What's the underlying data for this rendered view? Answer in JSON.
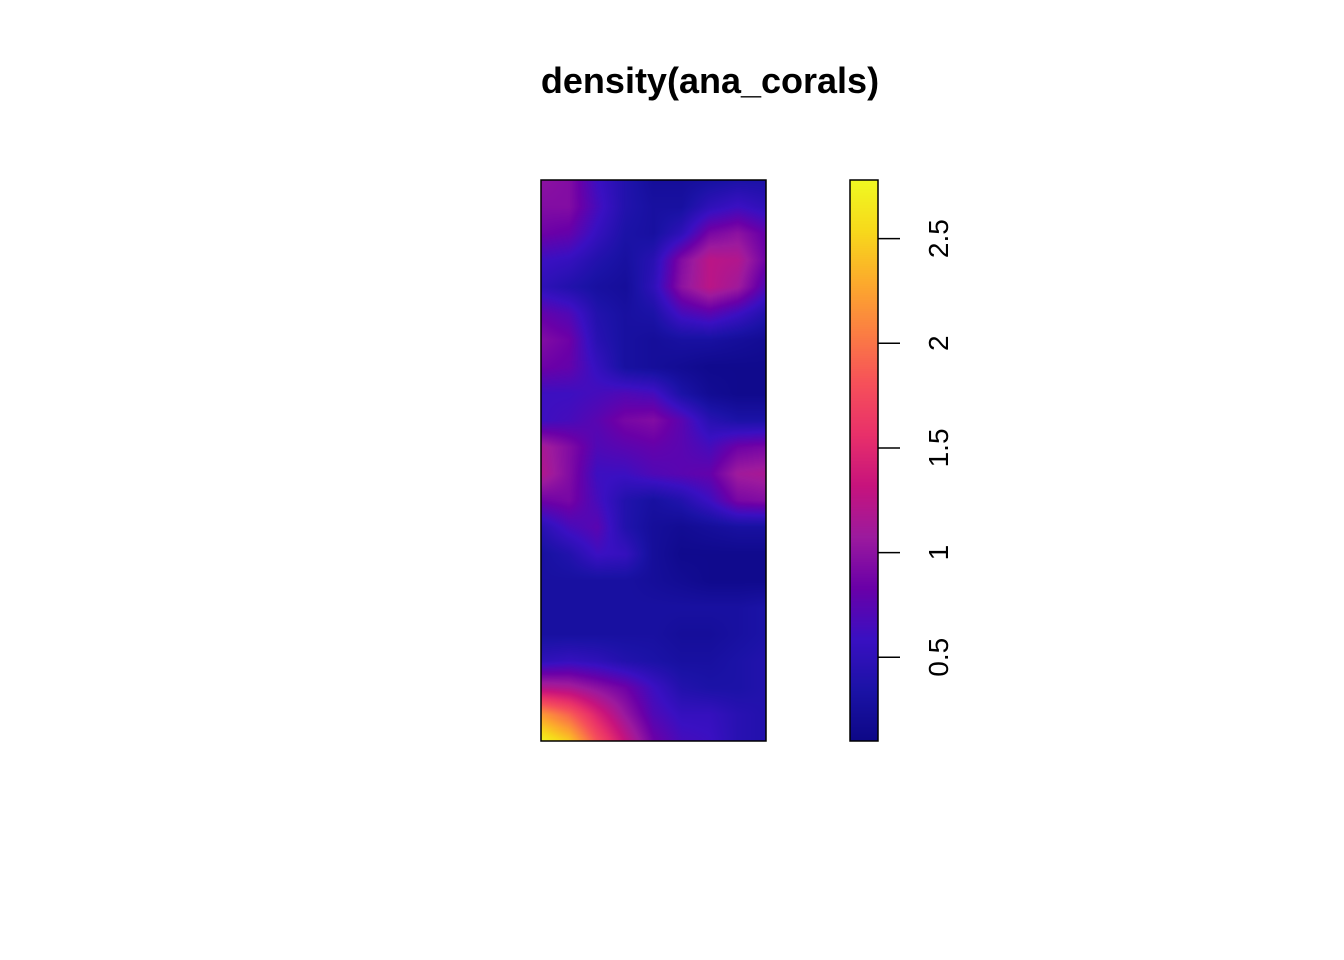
{
  "chart_data": {
    "type": "heatmap",
    "title": "density(ana_corals)",
    "xlabel": "",
    "ylabel": "",
    "grid": false,
    "legend": "right",
    "colorbar": {
      "range": [
        0.1,
        2.78
      ],
      "ticks": [
        0.5,
        1,
        1.5,
        2,
        2.5
      ],
      "tick_labels": [
        "0.5",
        "1",
        "1.5",
        "2",
        "2.5"
      ],
      "colors": [
        "#0d0887",
        "#1b12a6",
        "#3a10c2",
        "#6a00a8",
        "#9c1a9e",
        "#c7137d",
        "#e8306a",
        "#f6505a",
        "#fb7e43",
        "#fcab2c",
        "#f7d91b",
        "#f0f921"
      ]
    },
    "grid_cols": 9,
    "grid_rows": 22,
    "values": [
      [
        1.0,
        0.95,
        0.6,
        0.4,
        0.25,
        0.25,
        0.3,
        0.35,
        0.35
      ],
      [
        0.95,
        0.95,
        0.65,
        0.4,
        0.3,
        0.3,
        0.5,
        0.6,
        0.5
      ],
      [
        0.85,
        0.8,
        0.55,
        0.35,
        0.3,
        0.5,
        0.9,
        1.0,
        0.8
      ],
      [
        0.6,
        0.55,
        0.4,
        0.3,
        0.45,
        0.95,
        1.25,
        1.2,
        0.85
      ],
      [
        0.5,
        0.4,
        0.3,
        0.25,
        0.5,
        1.0,
        1.25,
        1.1,
        0.7
      ],
      [
        0.8,
        0.7,
        0.4,
        0.3,
        0.35,
        0.65,
        0.75,
        0.6,
        0.4
      ],
      [
        0.95,
        0.85,
        0.45,
        0.3,
        0.25,
        0.3,
        0.3,
        0.25,
        0.2
      ],
      [
        0.85,
        0.8,
        0.55,
        0.3,
        0.25,
        0.2,
        0.15,
        0.15,
        0.15
      ],
      [
        0.6,
        0.6,
        0.65,
        0.7,
        0.65,
        0.35,
        0.2,
        0.15,
        0.15
      ],
      [
        0.6,
        0.65,
        0.75,
        0.9,
        0.95,
        0.75,
        0.45,
        0.35,
        0.35
      ],
      [
        1.15,
        0.95,
        0.7,
        0.75,
        0.8,
        0.75,
        0.65,
        0.85,
        0.9
      ],
      [
        1.2,
        0.95,
        0.6,
        0.6,
        0.7,
        0.75,
        0.8,
        1.1,
        1.15
      ],
      [
        0.85,
        0.9,
        0.65,
        0.4,
        0.3,
        0.4,
        0.6,
        0.9,
        0.95
      ],
      [
        0.45,
        0.65,
        0.75,
        0.4,
        0.25,
        0.2,
        0.25,
        0.3,
        0.3
      ],
      [
        0.3,
        0.4,
        0.6,
        0.55,
        0.25,
        0.15,
        0.15,
        0.15,
        0.15
      ],
      [
        0.3,
        0.3,
        0.3,
        0.3,
        0.25,
        0.2,
        0.15,
        0.15,
        0.15
      ],
      [
        0.3,
        0.3,
        0.3,
        0.3,
        0.3,
        0.3,
        0.3,
        0.3,
        0.35
      ],
      [
        0.3,
        0.3,
        0.3,
        0.3,
        0.3,
        0.25,
        0.25,
        0.3,
        0.35
      ],
      [
        0.5,
        0.55,
        0.5,
        0.4,
        0.35,
        0.3,
        0.3,
        0.35,
        0.4
      ],
      [
        1.2,
        1.15,
        1.0,
        0.85,
        0.6,
        0.4,
        0.35,
        0.35,
        0.4
      ],
      [
        2.2,
        1.9,
        1.45,
        1.05,
        0.7,
        0.55,
        0.55,
        0.45,
        0.4
      ],
      [
        2.75,
        2.45,
        1.8,
        1.3,
        0.85,
        0.65,
        0.6,
        0.45,
        0.4
      ]
    ]
  }
}
